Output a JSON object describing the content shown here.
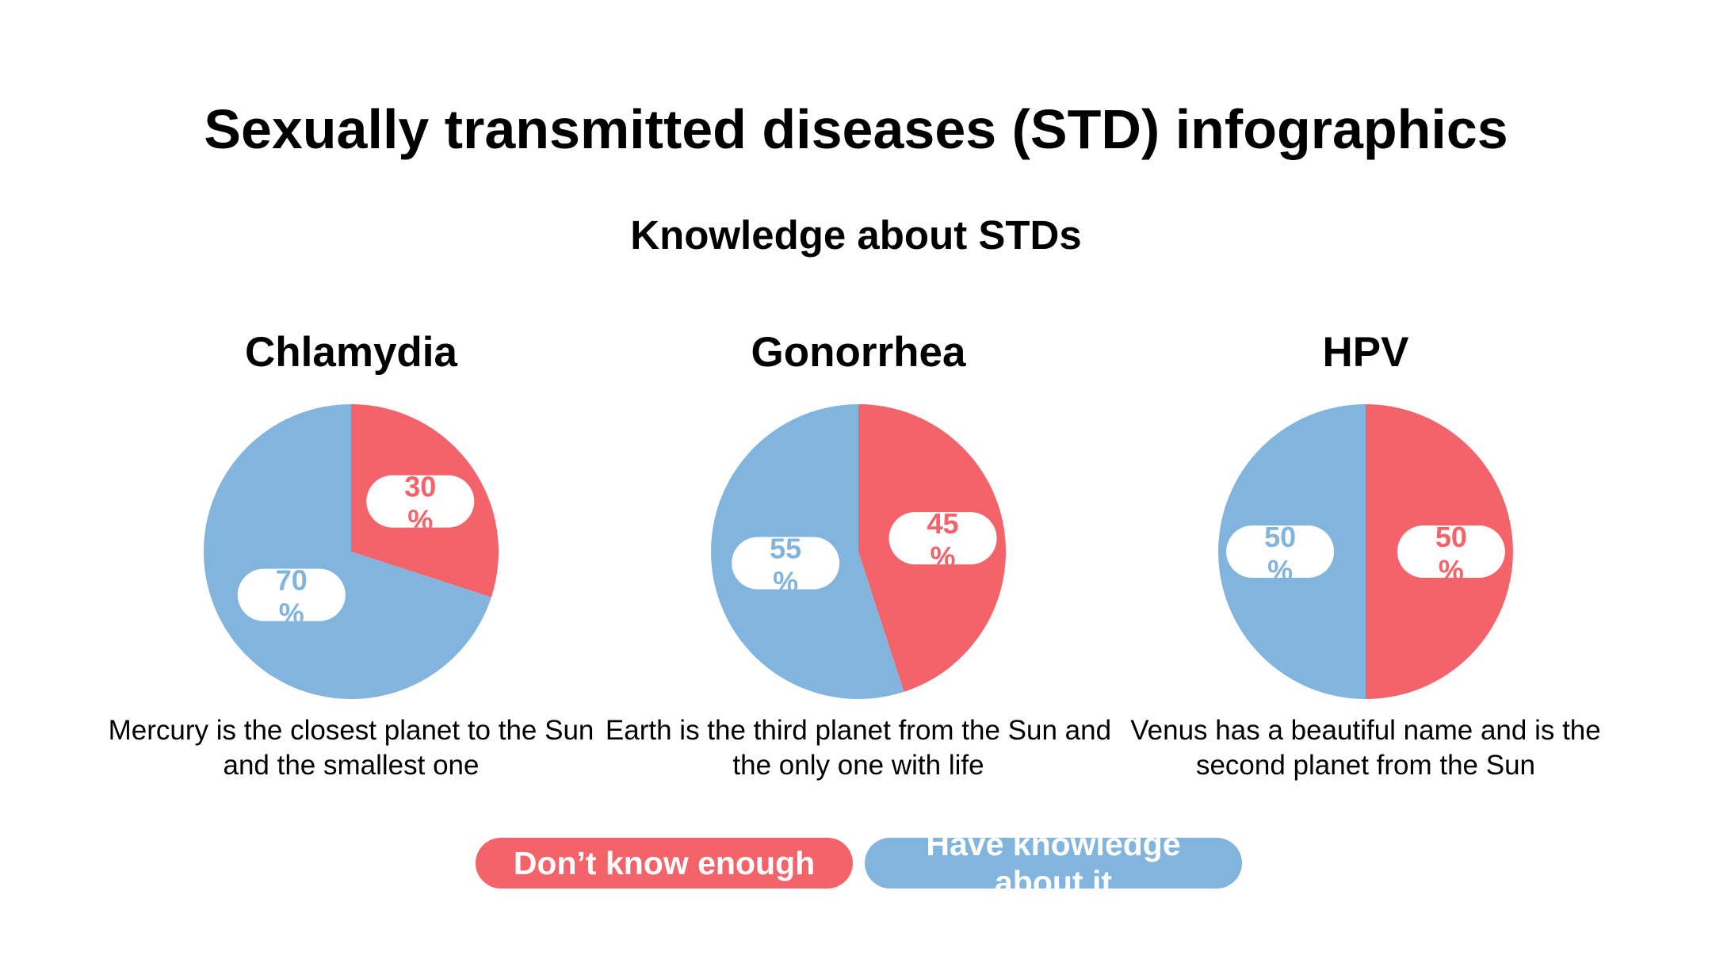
{
  "header": {
    "title": "Sexually transmitted diseases (STD) infographics",
    "subtitle": "Knowledge about STDs"
  },
  "colors": {
    "dont_know": "#f5636a",
    "have_knowledge": "#82b5de",
    "pill_bg": "#ffffff"
  },
  "chart_data": [
    {
      "type": "pie",
      "title": "Chlamydia",
      "series": [
        {
          "name": "Don’t know enough",
          "value": 30,
          "label": "30 %",
          "color": "#f5636a"
        },
        {
          "name": "Have knowledge about it",
          "value": 70,
          "label": "70 %",
          "color": "#82b5de"
        }
      ],
      "description": "Mercury is the closest planet to the Sun and the smallest one"
    },
    {
      "type": "pie",
      "title": "Gonorrhea",
      "series": [
        {
          "name": "Don’t know enough",
          "value": 45,
          "label": "45 %",
          "color": "#f5636a"
        },
        {
          "name": "Have knowledge about it",
          "value": 55,
          "label": "55 %",
          "color": "#82b5de"
        }
      ],
      "description": "Earth is the third planet from the Sun and the only one with life"
    },
    {
      "type": "pie",
      "title": "HPV",
      "series": [
        {
          "name": "Don’t know enough",
          "value": 50,
          "label": "50 %",
          "color": "#f5636a"
        },
        {
          "name": "Have knowledge about it",
          "value": 50,
          "label": "50 %",
          "color": "#82b5de"
        }
      ],
      "description": "Venus has a beautiful name and is the second planet from the Sun"
    }
  ],
  "legend": {
    "dont_know_label": "Don’t know enough",
    "have_knowledge_label": "Have knowledge about it"
  }
}
